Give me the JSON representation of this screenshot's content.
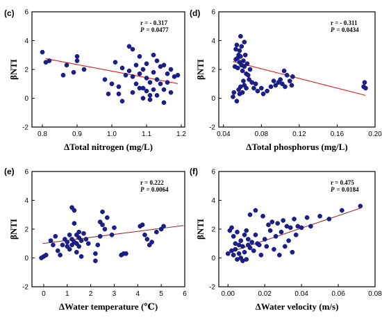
{
  "chart_data": [
    {
      "type": "scatter",
      "panel": "(c)",
      "xlabel": "ΔTotal nitrogen (mg/L)",
      "ylabel": "βNTI",
      "xlim": [
        0.77,
        1.21
      ],
      "ylim": [
        -2,
        6
      ],
      "xticks": [
        0.8,
        0.9,
        1.0,
        1.1,
        1.2
      ],
      "xtick_labels": [
        "0.8",
        "0.9",
        "1.0",
        "1.1",
        "1.2"
      ],
      "yticks": [
        -2,
        0,
        2,
        4,
        6
      ],
      "ytick_labels": [
        "-2",
        "0",
        "2",
        "4",
        "6"
      ],
      "stats": {
        "r": "r = - 0.317",
        "p_label": "P",
        "p_value": "= 0.0477"
      },
      "trend_color": "#e8171b",
      "trendline": {
        "x": [
          0.81,
          1.19
        ],
        "y": [
          2.75,
          1.02
        ]
      },
      "points": [
        [
          0.8,
          3.2
        ],
        [
          0.81,
          2.5
        ],
        [
          0.82,
          2.6
        ],
        [
          0.86,
          1.6
        ],
        [
          0.87,
          2.3
        ],
        [
          0.89,
          1.8
        ],
        [
          0.9,
          2.9
        ],
        [
          0.9,
          2.6
        ],
        [
          0.92,
          2.0
        ],
        [
          0.98,
          1.3
        ],
        [
          0.99,
          0.3
        ],
        [
          1.0,
          1.0
        ],
        [
          1.01,
          2.5
        ],
        [
          1.02,
          0.8
        ],
        [
          1.02,
          0.3
        ],
        [
          1.03,
          -0.2
        ],
        [
          1.03,
          2.1
        ],
        [
          1.04,
          1.6
        ],
        [
          1.05,
          3.6
        ],
        [
          1.05,
          1.9
        ],
        [
          1.06,
          3.4
        ],
        [
          1.06,
          1.5
        ],
        [
          1.06,
          0.4
        ],
        [
          1.07,
          2.3
        ],
        [
          1.07,
          1.0
        ],
        [
          1.08,
          2.9
        ],
        [
          1.08,
          1.7
        ],
        [
          1.08,
          0.7
        ],
        [
          1.09,
          2.0
        ],
        [
          1.09,
          0.7
        ],
        [
          1.09,
          0.0
        ],
        [
          1.1,
          2.4
        ],
        [
          1.1,
          1.4
        ],
        [
          1.1,
          0.5
        ],
        [
          1.11,
          1.1
        ],
        [
          1.11,
          0.2
        ],
        [
          1.11,
          -0.1
        ],
        [
          1.12,
          3.0
        ],
        [
          1.12,
          1.8
        ],
        [
          1.12,
          0.6
        ],
        [
          1.13,
          2.6
        ],
        [
          1.13,
          1.3
        ],
        [
          1.13,
          0.2
        ],
        [
          1.14,
          2.2
        ],
        [
          1.14,
          1.0
        ],
        [
          1.15,
          2.3
        ],
        [
          1.15,
          0.6
        ],
        [
          1.15,
          -0.3
        ],
        [
          1.16,
          1.7
        ],
        [
          1.16,
          1.1
        ],
        [
          1.17,
          2.0
        ],
        [
          1.17,
          0.4
        ],
        [
          1.18,
          1.5
        ],
        [
          1.19,
          1.6
        ]
      ]
    },
    {
      "type": "scatter",
      "panel": "(d)",
      "xlabel": "ΔTotal phosphorus (mg/L)",
      "ylabel": "βNTI",
      "xlim": [
        0.035,
        0.2
      ],
      "ylim": [
        -2,
        6
      ],
      "xticks": [
        0.04,
        0.08,
        0.12,
        0.16,
        0.2
      ],
      "xtick_labels": [
        "0.04",
        "0.08",
        "0.12",
        "0.16",
        "0.20"
      ],
      "yticks": [
        -2,
        0,
        2,
        4,
        6
      ],
      "ytick_labels": [
        "-2",
        "0",
        "2",
        "4",
        "6"
      ],
      "stats": {
        "r": "r = - 0.311",
        "p_label": "P",
        "p_value": "= 0.0434"
      },
      "trend_color": "#e8171b",
      "trendline": {
        "x": [
          0.05,
          0.19
        ],
        "y": [
          2.55,
          0.2
        ]
      },
      "points": [
        [
          0.05,
          0.1
        ],
        [
          0.051,
          0.4
        ],
        [
          0.052,
          2.2
        ],
        [
          0.053,
          3.4
        ],
        [
          0.053,
          2.7
        ],
        [
          0.054,
          3.7
        ],
        [
          0.054,
          -0.2
        ],
        [
          0.055,
          2.8
        ],
        [
          0.055,
          2.1
        ],
        [
          0.056,
          3.0
        ],
        [
          0.056,
          0.6
        ],
        [
          0.057,
          3.3
        ],
        [
          0.057,
          2.5
        ],
        [
          0.057,
          0.3
        ],
        [
          0.058,
          4.3
        ],
        [
          0.058,
          2.9
        ],
        [
          0.058,
          0.8
        ],
        [
          0.059,
          3.6
        ],
        [
          0.059,
          2.3
        ],
        [
          0.06,
          1.9
        ],
        [
          0.06,
          0.4
        ],
        [
          0.061,
          2.6
        ],
        [
          0.061,
          1.2
        ],
        [
          0.062,
          3.9
        ],
        [
          0.062,
          2.2
        ],
        [
          0.062,
          0.9
        ],
        [
          0.063,
          3.0
        ],
        [
          0.064,
          1.7
        ],
        [
          0.064,
          0.7
        ],
        [
          0.065,
          2.4
        ],
        [
          0.066,
          1.6
        ],
        [
          0.067,
          1.3
        ],
        [
          0.068,
          2.0
        ],
        [
          0.07,
          1.1
        ],
        [
          0.072,
          0.7
        ],
        [
          0.074,
          1.0
        ],
        [
          0.076,
          0.5
        ],
        [
          0.08,
          0.7
        ],
        [
          0.082,
          0.3
        ],
        [
          0.086,
          0.5
        ],
        [
          0.09,
          0.8
        ],
        [
          0.093,
          1.2
        ],
        [
          0.095,
          0.9
        ],
        [
          0.098,
          1.1
        ],
        [
          0.1,
          1.3
        ],
        [
          0.102,
          1.0
        ],
        [
          0.104,
          1.9
        ],
        [
          0.105,
          0.8
        ],
        [
          0.107,
          1.6
        ],
        [
          0.11,
          1.2
        ],
        [
          0.112,
          0.9
        ],
        [
          0.113,
          1.5
        ],
        [
          0.188,
          0.8
        ],
        [
          0.189,
          1.1
        ],
        [
          0.19,
          0.7
        ]
      ]
    },
    {
      "type": "scatter",
      "panel": "(e)",
      "xlabel": "ΔWater temperature (℃)",
      "ylabel": "βNTI",
      "xlim": [
        -0.5,
        6
      ],
      "ylim": [
        -2,
        6
      ],
      "xticks": [
        0,
        1,
        2,
        3,
        4,
        5,
        6
      ],
      "xtick_labels": [
        "0",
        "1",
        "2",
        "3",
        "4",
        "5",
        "6"
      ],
      "yticks": [
        -2,
        0,
        2,
        4,
        6
      ],
      "ytick_labels": [
        "-2",
        "0",
        "2",
        "4",
        "6"
      ],
      "stats": {
        "r": "r = 0.222",
        "p_label": "P",
        "p_value": "= 0.0064"
      },
      "trend_color": "#9b2b26",
      "trendline": {
        "x": [
          -0.05,
          5.95
        ],
        "y": [
          1.0,
          2.25
        ]
      },
      "points": [
        [
          -0.1,
          0.0
        ],
        [
          0.0,
          0.1
        ],
        [
          0.1,
          0.2
        ],
        [
          0.3,
          1.2
        ],
        [
          0.4,
          0.9
        ],
        [
          0.5,
          1.5
        ],
        [
          0.6,
          0.5
        ],
        [
          0.7,
          0.2
        ],
        [
          0.8,
          0.9
        ],
        [
          0.9,
          1.3
        ],
        [
          1.0,
          0.8
        ],
        [
          1.0,
          1.1
        ],
        [
          1.1,
          0.6
        ],
        [
          1.1,
          1.6
        ],
        [
          1.2,
          0.9
        ],
        [
          1.2,
          1.3
        ],
        [
          1.2,
          3.5
        ],
        [
          1.3,
          3.3
        ],
        [
          1.3,
          2.4
        ],
        [
          1.3,
          1.1
        ],
        [
          1.4,
          0.4
        ],
        [
          1.4,
          1.6
        ],
        [
          1.4,
          1.0
        ],
        [
          1.5,
          1.4
        ],
        [
          1.5,
          1.8
        ],
        [
          1.5,
          0.8
        ],
        [
          1.6,
          1.2
        ],
        [
          1.6,
          0.1
        ],
        [
          1.7,
          1.7
        ],
        [
          1.8,
          1.3
        ],
        [
          1.9,
          1.0
        ],
        [
          2.2,
          -0.2
        ],
        [
          2.2,
          0.3
        ],
        [
          2.3,
          0.9
        ],
        [
          2.4,
          2.5
        ],
        [
          2.4,
          1.5
        ],
        [
          2.5,
          3.2
        ],
        [
          2.5,
          2.3
        ],
        [
          2.6,
          2.0
        ],
        [
          2.7,
          2.8
        ],
        [
          2.9,
          1.6
        ],
        [
          3.0,
          2.1
        ],
        [
          3.3,
          0.2
        ],
        [
          3.4,
          0.3
        ],
        [
          3.5,
          0.3
        ],
        [
          4.1,
          2.2
        ],
        [
          4.2,
          2.3
        ],
        [
          4.3,
          1.6
        ],
        [
          4.4,
          1.3
        ],
        [
          4.5,
          0.9
        ],
        [
          4.6,
          1.1
        ],
        [
          4.8,
          1.8
        ],
        [
          5.0,
          2.0
        ],
        [
          5.1,
          2.2
        ]
      ]
    },
    {
      "type": "scatter",
      "panel": "(f)",
      "xlabel": "ΔWater velocity (m/s)",
      "ylabel": "βNTI",
      "xlim": [
        -0.005,
        0.08
      ],
      "ylim": [
        -2,
        6
      ],
      "xticks": [
        0.0,
        0.02,
        0.04,
        0.06,
        0.08
      ],
      "xtick_labels": [
        "0.00",
        "0.02",
        "0.04",
        "0.06",
        "0.08"
      ],
      "yticks": [
        -2,
        0,
        2,
        4,
        6
      ],
      "ytick_labels": [
        "-2",
        "0",
        "2",
        "4",
        "6"
      ],
      "stats": {
        "r": "r = 0.475",
        "p_label": "P",
        "p_value": "= 0.0184"
      },
      "trend_color": "#9b2b26",
      "trendline": {
        "x": [
          0.0,
          0.072
        ],
        "y": [
          0.35,
          3.45
        ]
      },
      "points": [
        [
          0.0,
          0.3
        ],
        [
          0.001,
          1.9
        ],
        [
          0.002,
          0.5
        ],
        [
          0.002,
          2.1
        ],
        [
          0.003,
          0.2
        ],
        [
          0.003,
          1.5
        ],
        [
          0.004,
          1.0
        ],
        [
          0.004,
          0.6
        ],
        [
          0.005,
          -0.1
        ],
        [
          0.005,
          1.8
        ],
        [
          0.006,
          0.9
        ],
        [
          0.006,
          0.3
        ],
        [
          0.007,
          0.0
        ],
        [
          0.007,
          1.2
        ],
        [
          0.008,
          -0.2
        ],
        [
          0.008,
          0.8
        ],
        [
          0.009,
          1.6
        ],
        [
          0.009,
          0.4
        ],
        [
          0.01,
          1.9
        ],
        [
          0.01,
          -0.1
        ],
        [
          0.011,
          0.9
        ],
        [
          0.011,
          1.3
        ],
        [
          0.012,
          3.0
        ],
        [
          0.012,
          0.7
        ],
        [
          0.013,
          1.1
        ],
        [
          0.014,
          0.5
        ],
        [
          0.015,
          1.6
        ],
        [
          0.015,
          3.3
        ],
        [
          0.016,
          1.0
        ],
        [
          0.017,
          0.9
        ],
        [
          0.018,
          0.2
        ],
        [
          0.019,
          2.9
        ],
        [
          0.02,
          1.3
        ],
        [
          0.021,
          0.8
        ],
        [
          0.022,
          2.3
        ],
        [
          0.023,
          1.9
        ],
        [
          0.024,
          2.5
        ],
        [
          0.025,
          0.6
        ],
        [
          0.026,
          1.5
        ],
        [
          0.027,
          2.4
        ],
        [
          0.028,
          0.2
        ],
        [
          0.029,
          1.8
        ],
        [
          0.03,
          2.6
        ],
        [
          0.031,
          0.8
        ],
        [
          0.032,
          2.2
        ],
        [
          0.033,
          1.2
        ],
        [
          0.034,
          2.1
        ],
        [
          0.035,
          0.4
        ],
        [
          0.036,
          2.7
        ],
        [
          0.037,
          1.6
        ],
        [
          0.038,
          2.2
        ],
        [
          0.04,
          2.1
        ],
        [
          0.043,
          2.8
        ],
        [
          0.045,
          2.2
        ],
        [
          0.05,
          2.9
        ],
        [
          0.055,
          2.7
        ],
        [
          0.062,
          3.3
        ],
        [
          0.072,
          3.6
        ]
      ]
    }
  ],
  "colors": {
    "marker": "#1b1f8c",
    "marker_edge": "#10125e",
    "axis": "#000000"
  }
}
